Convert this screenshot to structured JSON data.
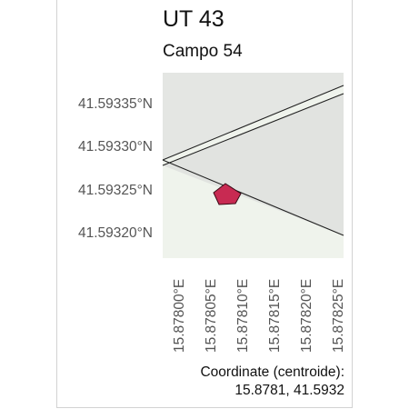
{
  "header": {
    "title": "UT 43",
    "subtitle": "Campo 54"
  },
  "map": {
    "y_ticks": [
      "41.59335°N",
      "41.59330°N",
      "41.59325°N",
      "41.59320°N"
    ],
    "x_ticks": [
      "15.87800°E",
      "15.87805°E",
      "15.87810°E",
      "15.87815°E",
      "15.87820°E",
      "15.87825°E"
    ],
    "colors": {
      "panel_upper": "#e4e6e3",
      "panel_lower": "#eff3ec",
      "polygon_fill": "#c82a52",
      "line": "#222222"
    },
    "marker": "pentagon-marker"
  },
  "footer": {
    "coord_label": "Coordinate (centroide):",
    "coord_value": "15.8781, 41.5932"
  }
}
